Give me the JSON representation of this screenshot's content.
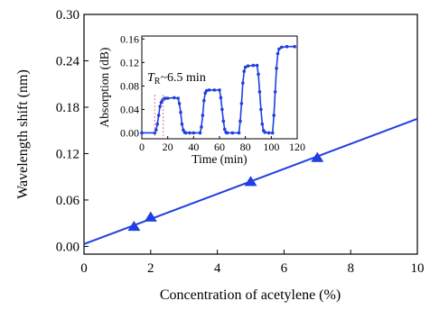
{
  "chart_data": [
    {
      "type": "scatter",
      "xlabel": "Concentration of acetylene (%)",
      "ylabel": "Wavelength shift (nm)",
      "xlim": [
        0,
        10
      ],
      "ylim": [
        -0.01,
        0.3
      ],
      "xticks": [
        "0",
        "2",
        "4",
        "6",
        "8",
        "10"
      ],
      "yticks": [
        "0.00",
        "0.06",
        "0.12",
        "0.18",
        "0.24",
        "0.30"
      ],
      "series": [
        {
          "marker": "triangle",
          "x": [
            1.5,
            2.0,
            5.0,
            7.0
          ],
          "y": [
            0.025,
            0.037,
            0.083,
            0.114
          ]
        }
      ],
      "fit_line": {
        "x": [
          0,
          10
        ],
        "y": [
          0.003,
          0.165
        ]
      },
      "color": "#1f3fe0",
      "grid": false
    },
    {
      "type": "line",
      "xlabel": "Time (min)",
      "ylabel": "Absorption (dB)",
      "xlim": [
        0,
        120
      ],
      "ylim": [
        -0.01,
        0.165
      ],
      "xticks": [
        "0",
        "20",
        "40",
        "60",
        "80",
        "100",
        "120"
      ],
      "yticks": [
        "0.00",
        "0.04",
        "0.08",
        "0.12",
        "0.16"
      ],
      "annotation_prefix": "T",
      "annotation_sub": "R",
      "annotation_text": "~6.5 min",
      "response_marker_x": [
        10,
        16.5
      ],
      "series": [
        {
          "marker": "circle",
          "x": [
            0,
            10,
            11,
            12,
            13,
            14,
            15,
            16,
            17,
            18,
            20,
            25,
            28,
            29,
            30,
            31,
            32,
            33,
            34,
            37,
            40,
            45,
            46,
            47,
            48,
            49,
            50,
            52,
            56,
            60,
            61,
            62,
            63,
            64,
            65,
            66,
            70,
            75,
            76,
            77,
            78,
            79,
            80,
            82,
            86,
            89,
            90,
            91,
            92,
            93,
            94,
            95,
            98,
            101,
            102,
            103,
            104,
            105,
            106,
            108,
            112,
            118
          ],
          "y": [
            0.0,
            0.0,
            0.005,
            0.015,
            0.03,
            0.045,
            0.052,
            0.056,
            0.058,
            0.059,
            0.059,
            0.06,
            0.059,
            0.05,
            0.035,
            0.015,
            0.005,
            0.001,
            0.0,
            0.0,
            0.0,
            0.0,
            0.01,
            0.03,
            0.055,
            0.068,
            0.072,
            0.073,
            0.073,
            0.073,
            0.06,
            0.04,
            0.02,
            0.006,
            0.001,
            0.0,
            0.0,
            0.0,
            0.02,
            0.05,
            0.085,
            0.105,
            0.112,
            0.114,
            0.115,
            0.115,
            0.1,
            0.07,
            0.04,
            0.015,
            0.004,
            0.001,
            0.0,
            0.0,
            0.03,
            0.07,
            0.11,
            0.135,
            0.143,
            0.146,
            0.147,
            0.147
          ]
        }
      ],
      "color": "#1f3fe0",
      "grid": false
    }
  ]
}
